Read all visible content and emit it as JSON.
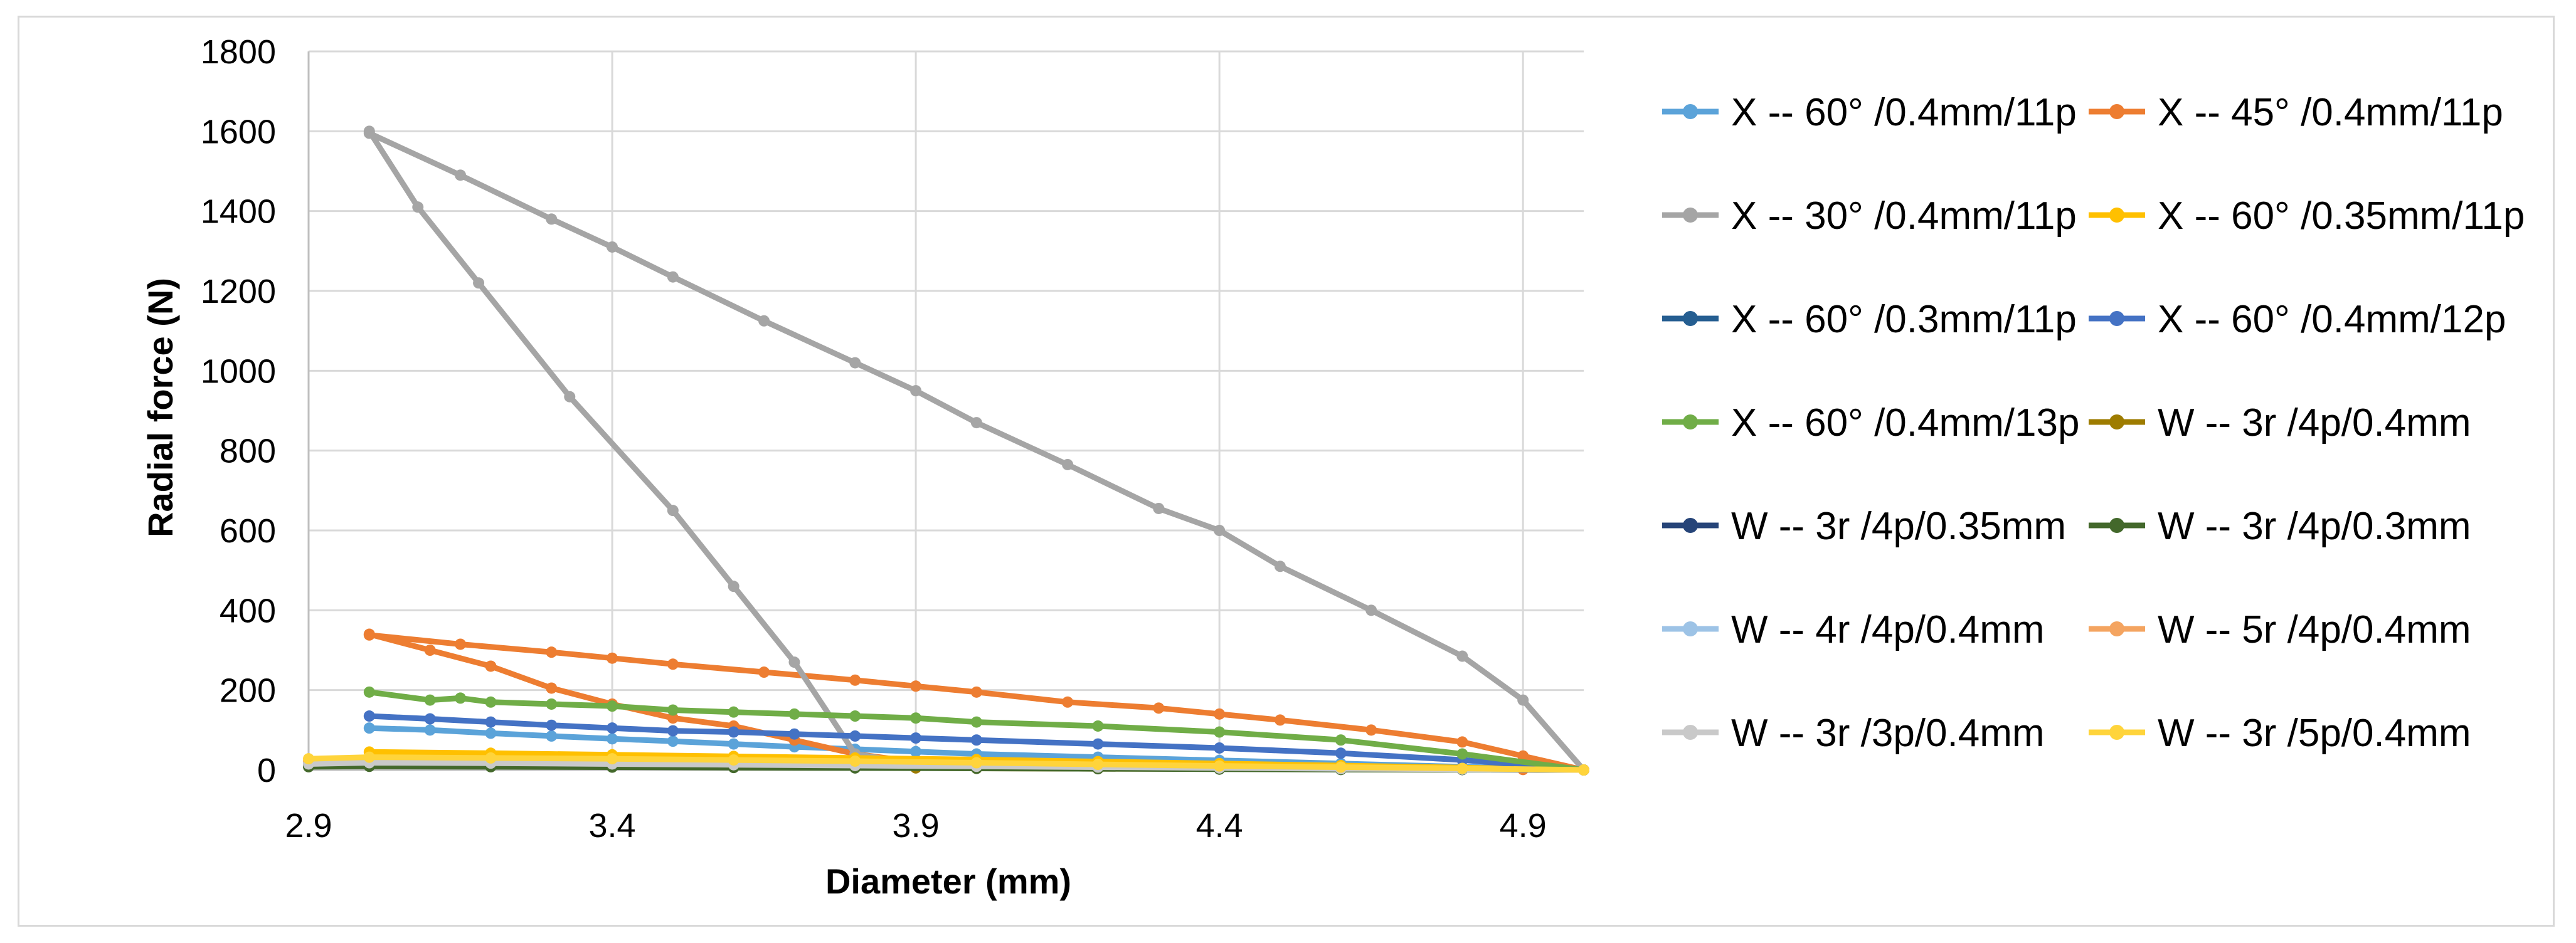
{
  "chart_data": {
    "type": "line",
    "title": "",
    "xlabel": "Diameter (mm)",
    "ylabel": "Radial force (N)",
    "xlim": [
      2.9,
      5.0
    ],
    "ylim": [
      0,
      1800
    ],
    "xticks": [
      "2.9",
      "3.4",
      "3.9",
      "4.4",
      "4.9"
    ],
    "yticks": [
      "0",
      "200",
      "400",
      "600",
      "800",
      "1000",
      "1200",
      "1400",
      "1600",
      "1800"
    ],
    "grid": true,
    "legend_position": "right",
    "series": [
      {
        "name": "X -- 60° /0.4mm/11p",
        "color": "#5ba3d9",
        "x": [
          3.0,
          3.1,
          3.2,
          3.3,
          3.4,
          3.5,
          3.6,
          3.7,
          3.8,
          3.9,
          4.0,
          4.2,
          4.4,
          4.6,
          4.8,
          5.0
        ],
        "y": [
          105,
          100,
          92,
          85,
          78,
          72,
          65,
          58,
          52,
          46,
          40,
          32,
          24,
          16,
          8,
          0
        ]
      },
      {
        "name": "X -- 45° /0.4mm/11p",
        "color": "#ed7d31",
        "x": [
          3.0,
          3.1,
          3.2,
          3.3,
          3.4,
          3.5,
          3.6,
          3.7,
          3.8,
          3.9,
          4.0,
          4.2,
          4.4,
          4.6,
          4.8,
          4.9,
          5.0,
          5.0,
          4.9,
          4.8,
          4.65,
          4.5,
          4.4,
          4.3,
          4.15,
          4.0,
          3.9,
          3.8,
          3.65,
          3.5,
          3.4,
          3.3,
          3.15,
          3.0
        ],
        "y": [
          340,
          300,
          260,
          205,
          165,
          130,
          110,
          75,
          40,
          20,
          10,
          8,
          6,
          4,
          2,
          1,
          0,
          0,
          35,
          70,
          100,
          125,
          140,
          155,
          170,
          195,
          210,
          225,
          245,
          265,
          280,
          295,
          315,
          338
        ]
      },
      {
        "name": "X -- 30° /0.4mm/11p",
        "color": "#a5a5a5",
        "x": [
          3.0,
          3.08,
          3.18,
          3.33,
          3.5,
          3.6,
          3.7,
          3.8,
          3.9,
          4.0,
          4.2,
          4.4,
          4.6,
          4.8,
          5.0,
          5.0,
          4.9,
          4.8,
          4.65,
          4.5,
          4.4,
          4.3,
          4.15,
          4.0,
          3.9,
          3.8,
          3.65,
          3.5,
          3.4,
          3.3,
          3.15,
          3.0
        ],
        "y": [
          1600,
          1410,
          1220,
          935,
          650,
          460,
          270,
          40,
          15,
          10,
          8,
          6,
          4,
          2,
          0,
          0,
          175,
          285,
          400,
          510,
          600,
          655,
          765,
          870,
          950,
          1020,
          1125,
          1235,
          1310,
          1380,
          1490,
          1595
        ]
      },
      {
        "name": "X -- 60° /0.35mm/11p",
        "color": "#ffc000",
        "x": [
          3.0,
          3.2,
          3.4,
          3.6,
          3.8,
          4.0,
          4.2,
          4.4,
          4.6,
          4.8,
          5.0
        ],
        "y": [
          45,
          42,
          38,
          34,
          30,
          26,
          21,
          16,
          11,
          6,
          0
        ]
      },
      {
        "name": "X -- 60° /0.3mm/11p",
        "color": "#255e91",
        "x": [
          3.0,
          3.2,
          3.4,
          3.6,
          3.8,
          4.0,
          4.2,
          4.4,
          4.6,
          4.8,
          5.0
        ],
        "y": [
          25,
          22,
          20,
          18,
          15,
          13,
          11,
          8,
          6,
          3,
          0
        ]
      },
      {
        "name": "X -- 60° /0.4mm/12p",
        "color": "#4472c4",
        "x": [
          3.0,
          3.1,
          3.2,
          3.3,
          3.4,
          3.5,
          3.6,
          3.7,
          3.8,
          3.9,
          4.0,
          4.2,
          4.4,
          4.6,
          4.8,
          5.0
        ],
        "y": [
          135,
          128,
          120,
          112,
          105,
          98,
          95,
          90,
          85,
          80,
          75,
          65,
          55,
          42,
          25,
          0
        ]
      },
      {
        "name": "X -- 60° /0.4mm/13p",
        "color": "#70ad47",
        "x": [
          3.0,
          3.1,
          3.15,
          3.2,
          3.3,
          3.4,
          3.5,
          3.6,
          3.7,
          3.8,
          3.9,
          4.0,
          4.2,
          4.4,
          4.6,
          4.8,
          5.0
        ],
        "y": [
          195,
          175,
          180,
          170,
          165,
          160,
          150,
          145,
          140,
          135,
          130,
          120,
          110,
          95,
          75,
          40,
          0
        ]
      },
      {
        "name": "W -- 3r /4p/0.4mm",
        "color": "#9e7c00",
        "x": [
          2.9,
          3.0,
          3.2,
          3.4,
          3.6,
          3.8,
          3.9,
          4.0,
          4.2,
          4.4,
          4.6,
          4.8,
          5.0
        ],
        "y": [
          12,
          15,
          14,
          12,
          10,
          8,
          5,
          4,
          3,
          3,
          2,
          1,
          0
        ]
      },
      {
        "name": "W -- 3r /4p/0.35mm",
        "color": "#264478",
        "x": [
          2.9,
          3.0,
          3.2,
          3.4,
          3.6,
          3.8,
          4.0,
          4.2,
          4.4,
          4.6,
          4.8,
          5.0
        ],
        "y": [
          10,
          12,
          11,
          10,
          9,
          7,
          5,
          4,
          3,
          2,
          1,
          0
        ]
      },
      {
        "name": "W -- 3r /4p/0.3mm",
        "color": "#43682b",
        "x": [
          2.9,
          3.0,
          3.2,
          3.4,
          3.6,
          3.8,
          4.0,
          4.2,
          4.4,
          4.6,
          4.8,
          5.0
        ],
        "y": [
          8,
          9,
          8,
          7,
          6,
          5,
          4,
          3,
          2,
          1,
          1,
          0
        ]
      },
      {
        "name": "W -- 4r /4p/0.4mm",
        "color": "#9dc3e6",
        "x": [
          2.9,
          3.0,
          3.2,
          3.4,
          3.6,
          3.8,
          4.0,
          4.2,
          4.4,
          4.6,
          4.8,
          5.0
        ],
        "y": [
          18,
          20,
          19,
          17,
          15,
          12,
          10,
          8,
          6,
          4,
          2,
          0
        ]
      },
      {
        "name": "W -- 5r /4p/0.4mm",
        "color": "#f4a460",
        "x": [
          2.9,
          3.0,
          3.2,
          3.4,
          3.6,
          3.8,
          4.0,
          4.2,
          4.4,
          4.6,
          4.8,
          5.0
        ],
        "y": [
          22,
          25,
          24,
          22,
          20,
          17,
          14,
          11,
          8,
          5,
          3,
          0
        ]
      },
      {
        "name": "W -- 3r /3p/0.4mm",
        "color": "#c9c9c9",
        "x": [
          2.9,
          3.0,
          3.2,
          3.4,
          3.6,
          3.8,
          4.0,
          4.2,
          4.4,
          4.6,
          4.8,
          5.0
        ],
        "y": [
          15,
          18,
          17,
          15,
          13,
          11,
          9,
          7,
          5,
          3,
          2,
          0
        ]
      },
      {
        "name": "W -- 3r /5p/0.4mm",
        "color": "#ffd43b",
        "x": [
          2.9,
          3.0,
          3.2,
          3.4,
          3.6,
          3.8,
          4.0,
          4.2,
          4.4,
          4.6,
          4.8,
          5.0
        ],
        "y": [
          28,
          32,
          30,
          28,
          25,
          22,
          18,
          14,
          10,
          7,
          4,
          0
        ]
      }
    ]
  }
}
